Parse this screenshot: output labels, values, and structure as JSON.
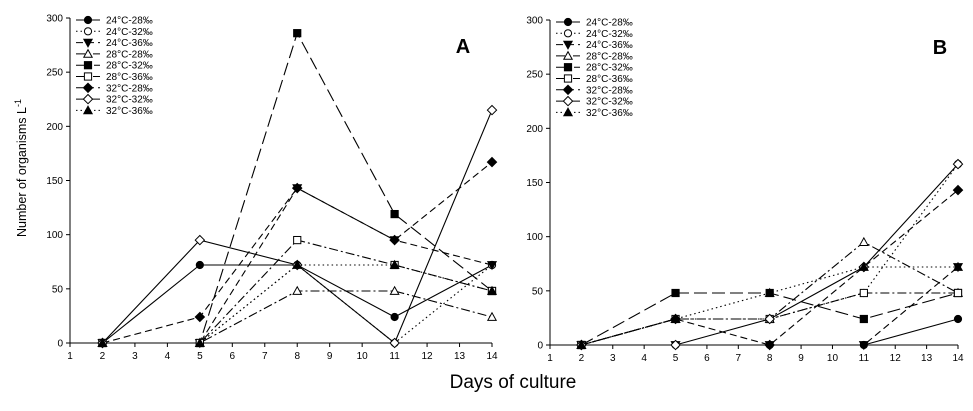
{
  "figure": {
    "x_title": "Days of culture",
    "y_title_main": "Number of organisms L",
    "y_title_exp": "-1"
  },
  "chart_data": [
    {
      "type": "line",
      "panel_label": "A",
      "x_ticks": [
        1,
        2,
        3,
        4,
        5,
        6,
        7,
        8,
        9,
        10,
        11,
        12,
        13,
        14
      ],
      "y_ticks": [
        0,
        50,
        100,
        150,
        200,
        250,
        300
      ],
      "xlim": [
        1,
        14
      ],
      "ylim": [
        0,
        300
      ],
      "legend_position": "top-left",
      "x": [
        2,
        5,
        8,
        11,
        14
      ],
      "series": [
        {
          "name": "24°C-28‰",
          "values": [
            0,
            72,
            72,
            24,
            72
          ],
          "marker": "circle-filled",
          "dash": "solid"
        },
        {
          "name": "24°C-32‰",
          "values": [
            0,
            0,
            72,
            0,
            72
          ],
          "marker": "circle-open",
          "dash": "dotted"
        },
        {
          "name": "24°C-36‰",
          "values": [
            0,
            0,
            143,
            95,
            72
          ],
          "marker": "triangle-down-filled",
          "dash": "dash"
        },
        {
          "name": "28°C-28‰",
          "values": [
            0,
            0,
            48,
            48,
            24
          ],
          "marker": "triangle-up-open",
          "dash": "dashdot"
        },
        {
          "name": "28°C-32‰",
          "values": [
            0,
            0,
            286,
            119,
            48
          ],
          "marker": "square-filled",
          "dash": "longdash"
        },
        {
          "name": "28°C-36‰",
          "values": [
            0,
            0,
            95,
            72,
            48
          ],
          "marker": "square-open",
          "dash": "dashdot"
        },
        {
          "name": "32°C-28‰",
          "values": [
            0,
            24,
            143,
            95,
            167
          ],
          "marker": "diamond-filled",
          "dash": "dash"
        },
        {
          "name": "32°C-32‰",
          "values": [
            0,
            95,
            72,
            0,
            215
          ],
          "marker": "diamond-open",
          "dash": "solid"
        },
        {
          "name": "32°C-36‰",
          "values": [
            0,
            0,
            72,
            72,
            48
          ],
          "marker": "triangle-up-filled",
          "dash": "dotted"
        }
      ]
    },
    {
      "type": "line",
      "panel_label": "B",
      "x_ticks": [
        1,
        2,
        3,
        4,
        5,
        6,
        7,
        8,
        9,
        10,
        11,
        12,
        13,
        14
      ],
      "y_ticks": [
        0,
        50,
        100,
        150,
        200,
        250,
        300
      ],
      "xlim": [
        1,
        14
      ],
      "ylim": [
        0,
        300
      ],
      "legend_position": "top-left",
      "x": [
        2,
        5,
        8,
        11,
        14
      ],
      "series": [
        {
          "name": "24°C-28‰",
          "values": [
            0,
            0,
            0,
            0,
            24
          ],
          "marker": "circle-filled",
          "dash": "solid"
        },
        {
          "name": "24°C-32‰",
          "values": [
            0,
            24,
            24,
            48,
            167
          ],
          "marker": "circle-open",
          "dash": "dotted"
        },
        {
          "name": "24°C-36‰",
          "values": [
            0,
            0,
            0,
            0,
            72
          ],
          "marker": "triangle-down-filled",
          "dash": "dash"
        },
        {
          "name": "28°C-28‰",
          "values": [
            0,
            24,
            24,
            95,
            48
          ],
          "marker": "triangle-up-open",
          "dash": "dashdot"
        },
        {
          "name": "28°C-32‰",
          "values": [
            0,
            48,
            48,
            24,
            48
          ],
          "marker": "square-filled",
          "dash": "longdash"
        },
        {
          "name": "28°C-36‰",
          "values": [
            0,
            24,
            24,
            48,
            48
          ],
          "marker": "square-open",
          "dash": "dashdot"
        },
        {
          "name": "32°C-28‰",
          "values": [
            0,
            24,
            0,
            72,
            143
          ],
          "marker": "diamond-filled",
          "dash": "dash"
        },
        {
          "name": "32°C-32‰",
          "values": [
            0,
            0,
            24,
            72,
            167
          ],
          "marker": "diamond-open",
          "dash": "solid"
        },
        {
          "name": "32°C-36‰",
          "values": [
            0,
            24,
            48,
            72,
            72
          ],
          "marker": "triangle-up-filled",
          "dash": "dotted"
        }
      ]
    }
  ]
}
